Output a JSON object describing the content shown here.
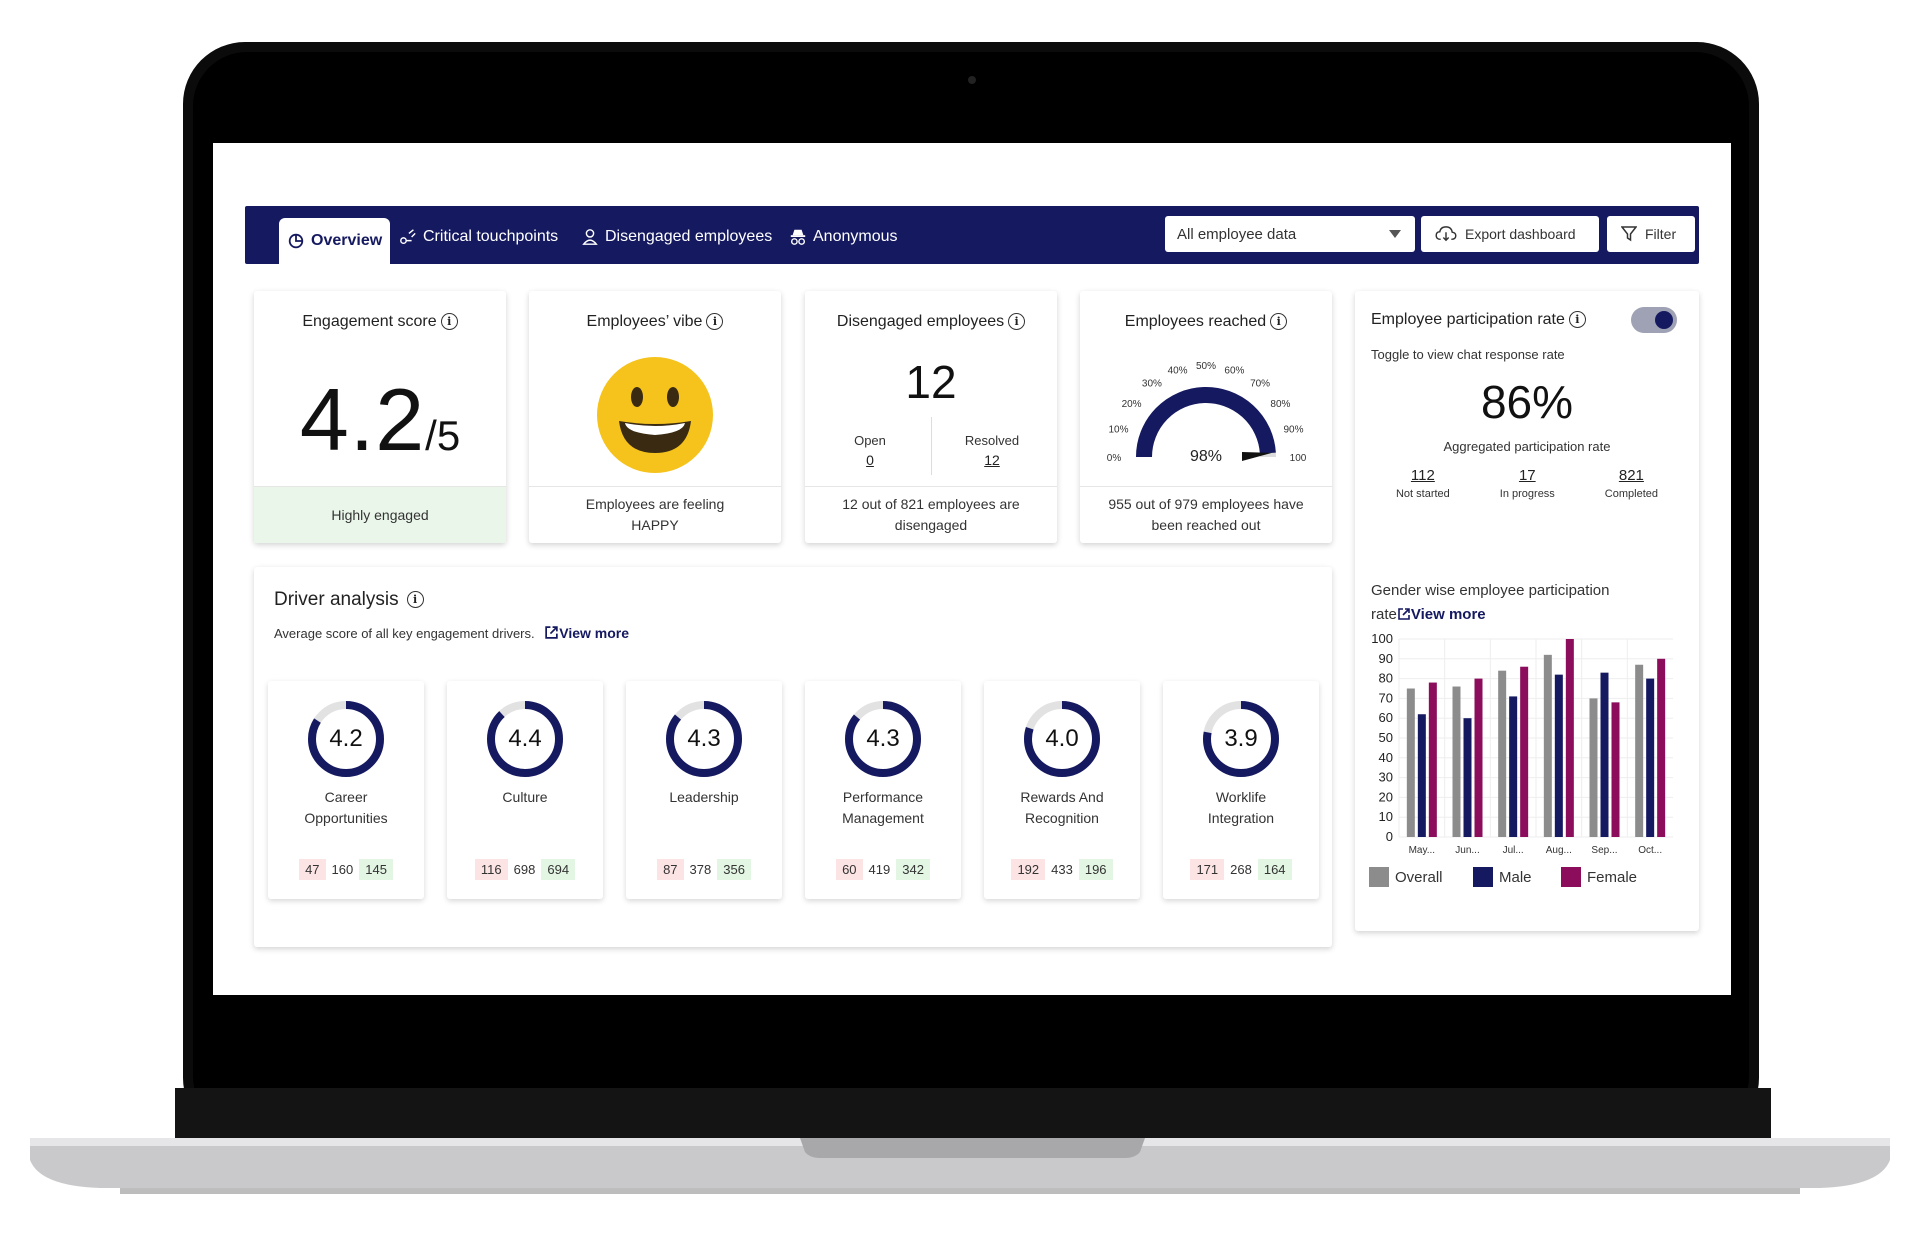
{
  "nav": {
    "tabs": [
      {
        "label": "Overview",
        "icon": "pie-chart-icon"
      },
      {
        "label": "Critical touchpoints",
        "icon": "touchpoint-icon"
      },
      {
        "label": "Disengaged employees",
        "icon": "user-icon"
      },
      {
        "label": "Anonymous",
        "icon": "incognito-icon"
      }
    ],
    "dataset_select": "All employee data",
    "export_label": "Export dashboard",
    "filter_label": "Filter"
  },
  "engagement": {
    "title": "Engagement score",
    "score": "4.2",
    "out_of": "/5",
    "footer": "Highly engaged"
  },
  "vibe": {
    "title": "Employees’ vibe",
    "footer_line1": "Employees are feeling",
    "footer_line2": "HAPPY"
  },
  "disengaged": {
    "title": "Disengaged employees",
    "count": "12",
    "open_label": "Open",
    "open_value": "0",
    "resolved_label": "Resolved",
    "resolved_value": "12",
    "footer_line1": "12 out of 821 employees are",
    "footer_line2": "disengaged"
  },
  "reached": {
    "title": "Employees reached",
    "value": "98%",
    "fraction": 0.98,
    "ticks": [
      "0%",
      "10%",
      "20%",
      "30%",
      "40%",
      "50%",
      "60%",
      "70%",
      "80%",
      "90%",
      "100"
    ],
    "footer_line1": "955 out of 979 employees have",
    "footer_line2": "been reached out"
  },
  "participation": {
    "title": "Employee participation rate",
    "toggle_hint": "Toggle to view chat response rate",
    "toggle_on": true,
    "rate": "86%",
    "rate_label": "Aggregated participation rate",
    "stats": [
      {
        "value": "112",
        "label": "Not started"
      },
      {
        "value": "17",
        "label": "In progress"
      },
      {
        "value": "821",
        "label": "Completed"
      }
    ],
    "gender_title_line1": "Gender wise employee participation",
    "gender_title_line2": "rate",
    "view_more": "View more"
  },
  "drivers": {
    "title": "Driver analysis",
    "subtitle": "Average score of all key engagement drivers.",
    "view_more": "View more",
    "items": [
      {
        "score": "4.2",
        "fraction": 0.84,
        "name1": "Career",
        "name2": "Opportunities",
        "neg": "47",
        "neu": "160",
        "pos": "145"
      },
      {
        "score": "4.4",
        "fraction": 0.88,
        "name1": "Culture",
        "name2": "",
        "neg": "116",
        "neu": "698",
        "pos": "694"
      },
      {
        "score": "4.3",
        "fraction": 0.86,
        "name1": "Leadership",
        "name2": "",
        "neg": "87",
        "neu": "378",
        "pos": "356"
      },
      {
        "score": "4.3",
        "fraction": 0.86,
        "name1": "Performance",
        "name2": "Management",
        "neg": "60",
        "neu": "419",
        "pos": "342"
      },
      {
        "score": "4.0",
        "fraction": 0.8,
        "name1": "Rewards And",
        "name2": "Recognition",
        "neg": "192",
        "neu": "433",
        "pos": "196"
      },
      {
        "score": "3.9",
        "fraction": 0.78,
        "name1": "Worklife",
        "name2": "Integration",
        "neg": "171",
        "neu": "268",
        "pos": "164"
      }
    ]
  },
  "colors": {
    "navy": "#151960",
    "overall": "#8c8c8c",
    "male": "#151960",
    "female": "#8b0d5b",
    "smile": "#f5c31c"
  },
  "chart_data": {
    "type": "bar",
    "categories": [
      "May...",
      "Jun...",
      "Jul...",
      "Aug...",
      "Sep...",
      "Oct..."
    ],
    "series": [
      {
        "name": "Overall",
        "values": [
          75,
          76,
          84,
          92,
          70,
          87
        ]
      },
      {
        "name": "Male",
        "values": [
          62,
          60,
          71,
          82,
          83,
          80
        ]
      },
      {
        "name": "Female",
        "values": [
          78,
          80,
          86,
          100,
          68,
          90
        ]
      }
    ],
    "yticks": [
      "100",
      "90",
      "80",
      "70",
      "60",
      "50",
      "40",
      "30",
      "20",
      "10",
      "0"
    ],
    "ylim": [
      0,
      100
    ],
    "grid": true,
    "legend": "bottom"
  }
}
